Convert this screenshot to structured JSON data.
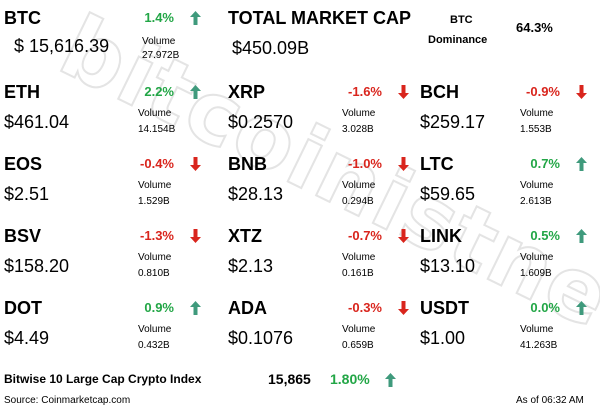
{
  "watermark": "bitcoinistnews",
  "btc": {
    "symbol": "BTC",
    "change": "1.4%",
    "price": "$ 15,616.39",
    "volume_label": "Volume",
    "volume": "27.972B",
    "direction": "up"
  },
  "market_cap": {
    "label": "TOTAL MARKET CAP",
    "value": "$450.09B"
  },
  "dominance": {
    "label_line1": "BTC",
    "label_line2": "Dominance",
    "value": "64.3%"
  },
  "coins": [
    {
      "symbol": "ETH",
      "change": "2.2%",
      "price": "$461.04",
      "volume_label": "Volume",
      "volume": "14.154B",
      "direction": "up"
    },
    {
      "symbol": "XRP",
      "change": "-1.6%",
      "price": "$0.2570",
      "volume_label": "Volume",
      "volume": "3.028B",
      "direction": "down"
    },
    {
      "symbol": "BCH",
      "change": "-0.9%",
      "price": "$259.17",
      "volume_label": "Volume",
      "volume": "1.553B",
      "direction": "down"
    },
    {
      "symbol": "EOS",
      "change": "-0.4%",
      "price": "$2.51",
      "volume_label": "Volume",
      "volume": "1.529B",
      "direction": "down"
    },
    {
      "symbol": "BNB",
      "change": "-1.0%",
      "price": "$28.13",
      "volume_label": "Volume",
      "volume": "0.294B",
      "direction": "down"
    },
    {
      "symbol": "LTC",
      "change": "0.7%",
      "price": "$59.65",
      "volume_label": "Volume",
      "volume": "2.613B",
      "direction": "up"
    },
    {
      "symbol": "BSV",
      "change": "-1.3%",
      "price": "$158.20",
      "volume_label": "Volume",
      "volume": "0.810B",
      "direction": "down"
    },
    {
      "symbol": "XTZ",
      "change": "-0.7%",
      "price": "$2.13",
      "volume_label": "Volume",
      "volume": "0.161B",
      "direction": "down"
    },
    {
      "symbol": "LINK",
      "change": "0.5%",
      "price": "$13.10",
      "volume_label": "Volume",
      "volume": "1.609B",
      "direction": "up"
    },
    {
      "symbol": "DOT",
      "change": "0.9%",
      "price": "$4.49",
      "volume_label": "Volume",
      "volume": "0.432B",
      "direction": "up"
    },
    {
      "symbol": "ADA",
      "change": "-0.3%",
      "price": "$0.1076",
      "volume_label": "Volume",
      "volume": "0.659B",
      "direction": "down"
    },
    {
      "symbol": "USDT",
      "change": "0.0%",
      "price": "$1.00",
      "volume_label": "Volume",
      "volume": "41.263B",
      "direction": "up"
    }
  ],
  "index": {
    "label": "Bitwise 10 Large Cap Crypto Index",
    "value": "15,865",
    "change": "1.80%",
    "direction": "up"
  },
  "footer": {
    "source": "Source: Coinmarketcap.com",
    "timestamp": "As of 06:32 AM"
  },
  "colors": {
    "up": "#22a646",
    "down": "#d9251d",
    "up_arrow": "#3f9a7c",
    "down_arrow": "#d9251d"
  }
}
